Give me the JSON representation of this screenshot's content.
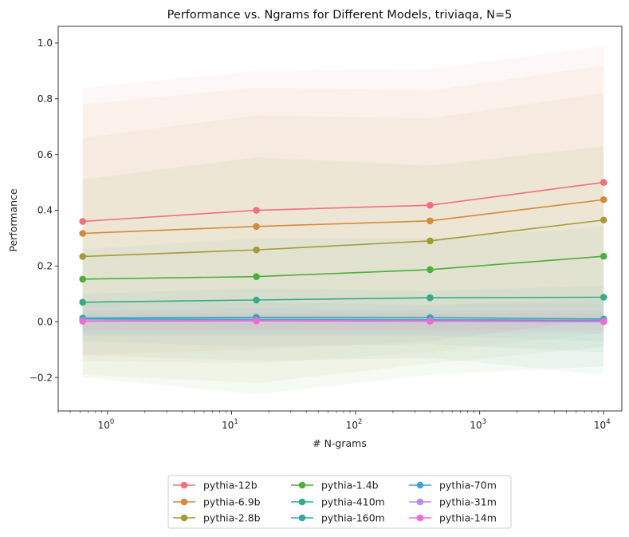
{
  "chart_data": {
    "type": "line",
    "title": "Performance vs. Ngrams for Different Models, triviaqa, N=5",
    "xlabel": "# N-grams",
    "ylabel": "Performance",
    "xscale": "log",
    "xlim": [
      0.4,
      14000
    ],
    "ylim": [
      -0.32,
      1.06
    ],
    "grid": false,
    "legend_position": "bottom-center",
    "x": [
      0.63,
      15.85,
      398.1,
      10000
    ],
    "xticks": [
      {
        "value": 1,
        "base": "10",
        "exp": "0"
      },
      {
        "value": 10,
        "base": "10",
        "exp": "1"
      },
      {
        "value": 100,
        "base": "10",
        "exp": "2"
      },
      {
        "value": 1000,
        "base": "10",
        "exp": "3"
      },
      {
        "value": 10000,
        "base": "10",
        "exp": "4"
      }
    ],
    "yticks": [
      {
        "value": -0.2,
        "label": "−0.2"
      },
      {
        "value": 0.0,
        "label": "0.0"
      },
      {
        "value": 0.2,
        "label": "0.2"
      },
      {
        "value": 0.4,
        "label": "0.4"
      },
      {
        "value": 0.6,
        "label": "0.6"
      },
      {
        "value": 0.8,
        "label": "0.8"
      },
      {
        "value": 1.0,
        "label": "1.0"
      }
    ],
    "series": [
      {
        "name": "pythia-12b",
        "color": "#f0707d",
        "values": [
          0.36,
          0.4,
          0.418,
          0.5
        ],
        "upper": [
          0.84,
          0.9,
          0.905,
          0.99
        ],
        "lower": [
          -0.12,
          -0.1,
          -0.07,
          0.01
        ]
      },
      {
        "name": "pythia-6.9b",
        "color": "#d5893b",
        "values": [
          0.317,
          0.342,
          0.362,
          0.438
        ],
        "upper": [
          0.78,
          0.84,
          0.83,
          0.92
        ],
        "lower": [
          -0.14,
          -0.15,
          -0.11,
          -0.04
        ]
      },
      {
        "name": "pythia-2.8b",
        "color": "#a39b38",
        "values": [
          0.234,
          0.258,
          0.29,
          0.365
        ],
        "upper": [
          0.66,
          0.74,
          0.73,
          0.82
        ],
        "lower": [
          -0.19,
          -0.22,
          -0.15,
          -0.09
        ]
      },
      {
        "name": "pythia-1.4b",
        "color": "#4daf3b",
        "values": [
          0.153,
          0.162,
          0.187,
          0.235
        ],
        "upper": [
          0.51,
          0.59,
          0.56,
          0.63
        ],
        "lower": [
          -0.2,
          -0.26,
          -0.19,
          -0.16
        ]
      },
      {
        "name": "pythia-410m",
        "color": "#34aa86",
        "values": [
          0.07,
          0.078,
          0.086,
          0.088
        ],
        "upper": [
          0.26,
          0.3,
          0.3,
          0.34
        ],
        "lower": [
          -0.12,
          -0.14,
          -0.13,
          -0.19
        ]
      },
      {
        "name": "pythia-160m",
        "color": "#38a6a6",
        "values": [
          0.013,
          0.016,
          0.015,
          0.01
        ],
        "upper": [
          0.1,
          0.12,
          0.11,
          0.13
        ],
        "lower": [
          -0.07,
          -0.09,
          -0.08,
          -0.11
        ]
      },
      {
        "name": "pythia-70m",
        "color": "#3da1dc",
        "values": [
          0.01,
          0.008,
          0.007,
          0.005
        ],
        "upper": [
          0.07,
          0.07,
          0.06,
          0.08
        ],
        "lower": [
          -0.05,
          -0.05,
          -0.05,
          -0.07
        ]
      },
      {
        "name": "pythia-31m",
        "color": "#b888ee",
        "values": [
          0.003,
          0.005,
          0.003,
          0.0
        ],
        "upper": [
          0.04,
          0.05,
          0.04,
          0.04
        ],
        "lower": [
          -0.04,
          -0.04,
          -0.04,
          -0.04
        ]
      },
      {
        "name": "pythia-14m",
        "color": "#f06bd0",
        "values": [
          0.002,
          0.003,
          0.002,
          0.002
        ],
        "upper": [
          0.03,
          0.03,
          0.03,
          0.03
        ],
        "lower": [
          -0.03,
          -0.03,
          -0.03,
          -0.03
        ]
      }
    ]
  }
}
